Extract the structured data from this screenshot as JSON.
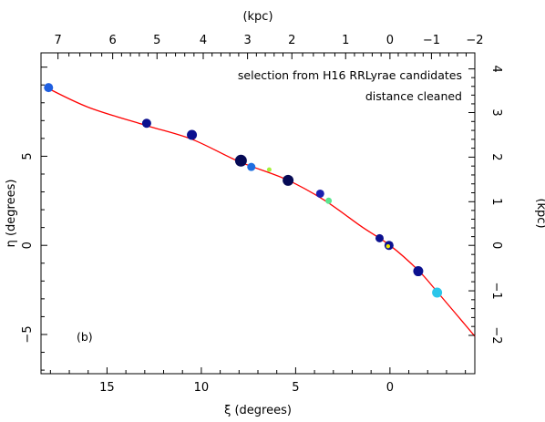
{
  "chart_data": {
    "type": "scatter",
    "xlabel": "ξ (degrees)",
    "ylabel": "η (degrees)",
    "top_label": "(kpc)",
    "right_label": "(kpc)",
    "xlim": [
      18.5,
      -4.5
    ],
    "ylim": [
      -7.2,
      10.8
    ],
    "x_ticks": [
      {
        "v": 15,
        "label": "15"
      },
      {
        "v": 10,
        "label": "10"
      },
      {
        "v": 5,
        "label": "5"
      },
      {
        "v": 0,
        "label": "0"
      }
    ],
    "y_ticks": [
      {
        "v": -5,
        "label": "−5"
      },
      {
        "v": 0,
        "label": "0"
      },
      {
        "v": 5,
        "label": "5"
      }
    ],
    "top_ticks": [
      {
        "v": 17.6,
        "label": "7"
      },
      {
        "v": 14.7,
        "label": "6"
      },
      {
        "v": 12.35,
        "label": "5"
      },
      {
        "v": 9.9,
        "label": "4"
      },
      {
        "v": 7.55,
        "label": "3"
      },
      {
        "v": 5.2,
        "label": "2"
      },
      {
        "v": 2.35,
        "label": "1"
      },
      {
        "v": 0,
        "label": "0"
      },
      {
        "v": -2.2,
        "label": "−1"
      },
      {
        "v": -4.5,
        "label": "−2"
      }
    ],
    "right_ticks": [
      {
        "v": 9.9,
        "label": "4"
      },
      {
        "v": 7.45,
        "label": "3"
      },
      {
        "v": 4.95,
        "label": "2"
      },
      {
        "v": 2.45,
        "label": "1"
      },
      {
        "v": 0,
        "label": "0"
      },
      {
        "v": -2.55,
        "label": "−1"
      },
      {
        "v": -5.05,
        "label": "−2"
      }
    ],
    "annotations": [
      "selection from H16 RRLyrae candidates",
      "distance cleaned"
    ],
    "panel_label": "(b)",
    "curve_color": "#ff0000",
    "curve": {
      "x": [
        18.3,
        16,
        13,
        10.5,
        8,
        5.5,
        3.5,
        1.5,
        0,
        -1.5,
        -2.5,
        -4.5
      ],
      "y": [
        8.9,
        7.75,
        6.75,
        5.95,
        4.7,
        3.7,
        2.55,
        1.05,
        0,
        -1.4,
        -2.6,
        -5.1
      ]
    },
    "points": [
      {
        "x": 18.1,
        "y": 8.85,
        "color": "#1f5fe0",
        "size": 5
      },
      {
        "x": 12.9,
        "y": 6.85,
        "color": "#0b108f",
        "size": 5
      },
      {
        "x": 10.5,
        "y": 6.2,
        "color": "#0b108f",
        "size": 5.5
      },
      {
        "x": 7.9,
        "y": 4.75,
        "color": "#060a55",
        "size": 6.5
      },
      {
        "x": 7.35,
        "y": 4.4,
        "color": "#1e6ee0",
        "size": 4.5
      },
      {
        "x": 6.4,
        "y": 4.25,
        "color": "#a6f23a",
        "size": 2.5
      },
      {
        "x": 5.4,
        "y": 3.65,
        "color": "#060a55",
        "size": 6
      },
      {
        "x": 3.7,
        "y": 2.9,
        "color": "#1a1fb0",
        "size": 4.5
      },
      {
        "x": 3.25,
        "y": 2.5,
        "color": "#59e68f",
        "size": 3.5
      },
      {
        "x": 0.55,
        "y": 0.4,
        "color": "#0b108f",
        "size": 4.5
      },
      {
        "x": 0.05,
        "y": 0.0,
        "color": "#0b108f",
        "size": 5
      },
      {
        "x": 0.1,
        "y": -0.05,
        "color": "#f2e900",
        "size": 2.2
      },
      {
        "x": -1.5,
        "y": -1.45,
        "color": "#0b108f",
        "size": 5.5
      },
      {
        "x": -2.5,
        "y": -2.65,
        "color": "#2bc6ea",
        "size": 5.5
      }
    ]
  }
}
